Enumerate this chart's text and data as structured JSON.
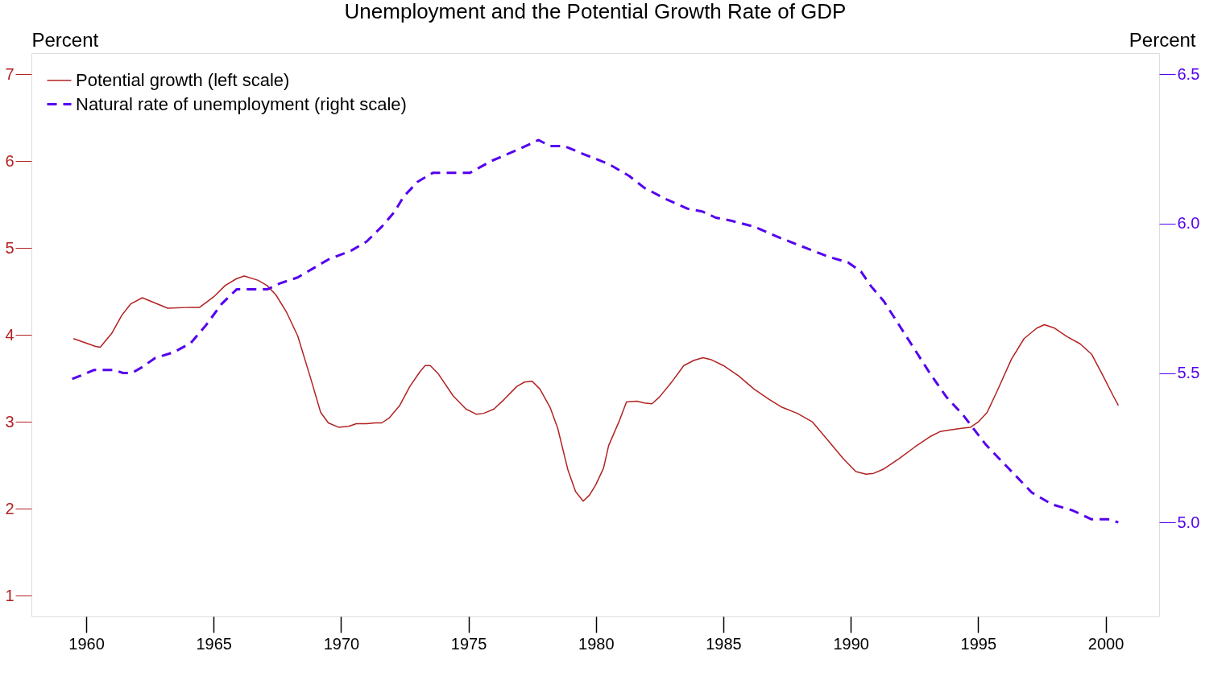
{
  "chart_data": {
    "type": "line",
    "title": "Unemployment and the Potential Growth Rate of GDP",
    "ylabel": "Percent",
    "y2label": "Percent",
    "xlim": [
      1957.85,
      2002.1
    ],
    "xticks": [
      1960,
      1965,
      1970,
      1975,
      1980,
      1985,
      1990,
      1995,
      2000
    ],
    "ylim": [
      0.763,
      7.245
    ],
    "yticks": [
      1,
      2,
      3,
      4,
      5,
      6,
      7
    ],
    "y2lim": [
      4.685,
      6.571
    ],
    "y2ticks": [
      {
        "value": 5.0,
        "label": "5.0"
      },
      {
        "value": 5.5,
        "label": "5.5"
      },
      {
        "value": 6.0,
        "label": "6.0"
      },
      {
        "value": 6.5,
        "label": "6.5"
      }
    ],
    "grid": false,
    "legend": "top left",
    "series": [
      {
        "name": "Potential growth (left scale)",
        "color": "#b22222",
        "line_style": "solid",
        "x": [
          1959.5,
          1960.37,
          1960.55,
          1961.0,
          1961.4,
          1961.75,
          1962.2,
          1962.7,
          1963.2,
          1964.1,
          1964.45,
          1965.0,
          1965.45,
          1965.9,
          1966.2,
          1966.75,
          1967.1,
          1967.45,
          1967.85,
          1968.3,
          1968.8,
          1969.2,
          1969.5,
          1969.9,
          1970.3,
          1970.6,
          1971.0,
          1971.35,
          1971.6,
          1971.9,
          1972.3,
          1972.7,
          1973.1,
          1973.3,
          1973.5,
          1973.8,
          1974.4,
          1974.9,
          1975.3,
          1975.6,
          1976.0,
          1976.4,
          1976.9,
          1977.2,
          1977.5,
          1977.8,
          1978.2,
          1978.5,
          1978.9,
          1979.2,
          1979.5,
          1979.75,
          1980.0,
          1980.3,
          1980.5,
          1980.9,
          1981.2,
          1981.6,
          1981.9,
          1982.2,
          1982.5,
          1983.0,
          1983.45,
          1983.85,
          1984.2,
          1984.5,
          1985.0,
          1985.6,
          1986.2,
          1986.8,
          1987.3,
          1987.9,
          1988.5,
          1989.1,
          1989.7,
          1990.2,
          1990.6,
          1990.9,
          1991.3,
          1991.9,
          1992.5,
          1993.1,
          1993.5,
          1993.9,
          1994.4,
          1994.7,
          1995.0,
          1995.35,
          1995.75,
          1996.3,
          1996.8,
          1997.3,
          1997.6,
          1998.0,
          1998.5,
          1999.0,
          1999.45,
          1999.9,
          2000.3,
          2000.5
        ],
        "values": [
          3.96,
          3.87,
          3.86,
          4.02,
          4.23,
          4.36,
          4.43,
          4.37,
          4.31,
          4.32,
          4.32,
          4.44,
          4.57,
          4.65,
          4.68,
          4.63,
          4.57,
          4.46,
          4.27,
          3.99,
          3.51,
          3.11,
          2.99,
          2.94,
          2.95,
          2.98,
          2.98,
          2.99,
          2.99,
          3.05,
          3.19,
          3.41,
          3.58,
          3.65,
          3.65,
          3.56,
          3.3,
          3.15,
          3.09,
          3.1,
          3.15,
          3.26,
          3.41,
          3.46,
          3.47,
          3.38,
          3.17,
          2.93,
          2.45,
          2.2,
          2.09,
          2.16,
          2.28,
          2.47,
          2.73,
          3.0,
          3.23,
          3.24,
          3.22,
          3.21,
          3.29,
          3.47,
          3.65,
          3.71,
          3.74,
          3.72,
          3.65,
          3.53,
          3.38,
          3.26,
          3.17,
          3.1,
          3.0,
          2.79,
          2.58,
          2.43,
          2.4,
          2.41,
          2.46,
          2.58,
          2.71,
          2.83,
          2.89,
          2.91,
          2.93,
          2.94,
          3.0,
          3.11,
          3.36,
          3.72,
          3.96,
          4.08,
          4.12,
          4.08,
          3.98,
          3.9,
          3.78,
          3.53,
          3.3,
          3.19
        ]
      },
      {
        "name": "Natural rate of unemployment (right scale)",
        "color": "#5500ee",
        "line_style": "dashed",
        "axis": "y2",
        "x": [
          1959.45,
          1959.75,
          1960.3,
          1961.1,
          1961.45,
          1961.8,
          1962.2,
          1962.7,
          1963.45,
          1964.1,
          1964.7,
          1965.3,
          1965.9,
          1966.7,
          1967.1,
          1967.6,
          1968.3,
          1968.9,
          1969.5,
          1970.4,
          1971.0,
          1971.6,
          1972.1,
          1972.45,
          1973.0,
          1973.6,
          1974.4,
          1975.05,
          1975.9,
          1977.0,
          1977.75,
          1978.2,
          1978.75,
          1979.6,
          1980.5,
          1981.3,
          1981.9,
          1982.8,
          1983.6,
          1984.2,
          1984.7,
          1985.3,
          1986.2,
          1987.3,
          1988.2,
          1989.1,
          1989.9,
          1990.4,
          1990.8,
          1991.3,
          1991.75,
          1992.5,
          1993.1,
          1993.75,
          1994.4,
          1995.3,
          1996.2,
          1997.1,
          1997.9,
          1998.7,
          1999.45,
          2000.1,
          2000.5
        ],
        "values": [
          5.48,
          5.49,
          5.51,
          5.51,
          5.5,
          5.5,
          5.52,
          5.55,
          5.57,
          5.6,
          5.66,
          5.73,
          5.78,
          5.78,
          5.78,
          5.8,
          5.82,
          5.85,
          5.88,
          5.91,
          5.94,
          5.99,
          6.04,
          6.09,
          6.14,
          6.17,
          6.17,
          6.17,
          6.21,
          6.25,
          6.28,
          6.26,
          6.26,
          6.23,
          6.2,
          6.16,
          6.12,
          6.08,
          6.05,
          6.04,
          6.02,
          6.01,
          5.99,
          5.95,
          5.92,
          5.89,
          5.87,
          5.84,
          5.79,
          5.74,
          5.68,
          5.58,
          5.5,
          5.42,
          5.36,
          5.26,
          5.18,
          5.1,
          5.06,
          5.04,
          5.01,
          5.01,
          5.0
        ]
      }
    ]
  }
}
